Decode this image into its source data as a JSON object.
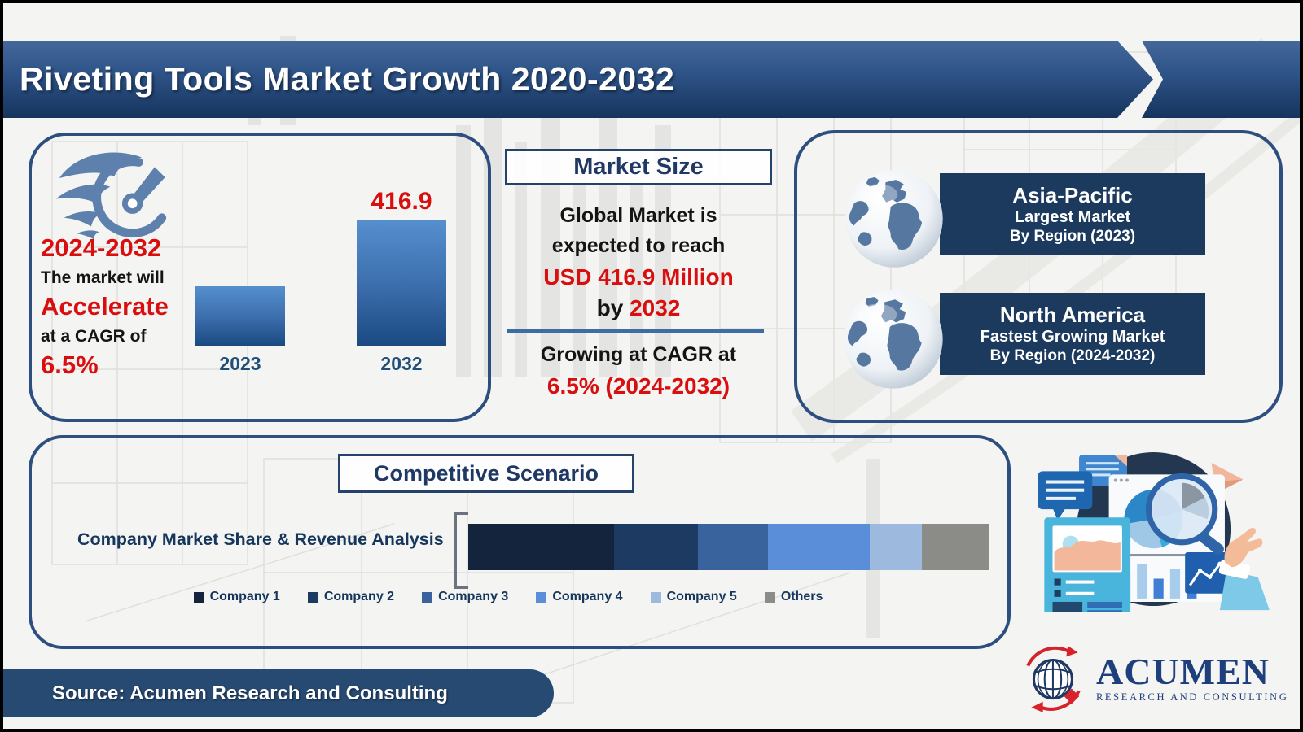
{
  "title": "Riveting Tools Market Growth 2020-2032",
  "colors": {
    "accent_red": "#d90e0e",
    "navy_text": "#1f3864",
    "panel_border": "#2d4f7f",
    "banner_bg": "#1b3a5e",
    "title_gradient_top": "#44689b",
    "title_gradient_bottom": "#16345d",
    "divider_blue": "#3c6ea5",
    "source_bar_bg": "#274a72"
  },
  "growth_panel": {
    "period": "2024-2032",
    "line1": "The market will",
    "highlight": "Accelerate",
    "line2": "at a CAGR of",
    "cagr": "6.5%"
  },
  "market_size": {
    "header": "Market Size",
    "line1": "Global Market is",
    "line2": "expected to reach",
    "value": "USD 416.9 Million",
    "by_word": "by",
    "by_year": "2032",
    "growth_line": "Growing at CAGR at",
    "growth_value": "6.5% (2024-2032)"
  },
  "regions": {
    "items": [
      {
        "name": "Asia-Pacific",
        "sub1": "Largest Market",
        "sub2": "By Region (2023)"
      },
      {
        "name": "North America",
        "sub1": "Fastest Growing Market",
        "sub2": "By Region (2024-2032)"
      }
    ]
  },
  "competitive": {
    "header": "Competitive Scenario",
    "label": "Company Market Share & Revenue Analysis"
  },
  "source": "Source: Acumen Research and Consulting",
  "brand": {
    "name": "ACUMEN",
    "tagline": "RESEARCH AND CONSULTING"
  },
  "chart_data": [
    {
      "type": "bar",
      "categories": [
        "2023",
        "2032"
      ],
      "values": [
        198,
        416.9
      ],
      "value_labels": [
        "",
        "416.9"
      ],
      "ylabel": "USD Million",
      "ylim": [
        0,
        450
      ],
      "grid": false,
      "bar_gradient": [
        "#568fce",
        "#1b4a81"
      ],
      "note_visible_label_only": "416.9"
    },
    {
      "type": "stacked-bar",
      "title": "Competitive Scenario",
      "label": "Company Market Share & Revenue Analysis",
      "legend_position": "bottom",
      "series": [
        {
          "name": "Company 1",
          "share": 28,
          "color": "#14243d"
        },
        {
          "name": "Company 2",
          "share": 16,
          "color": "#1d3a63"
        },
        {
          "name": "Company 3",
          "share": 13.5,
          "color": "#39639d"
        },
        {
          "name": "Company 4",
          "share": 19.5,
          "color": "#5b8ed9"
        },
        {
          "name": "Company 5",
          "share": 10,
          "color": "#9db9de"
        },
        {
          "name": "Others",
          "share": 13,
          "color": "#8b8b88"
        }
      ]
    }
  ]
}
